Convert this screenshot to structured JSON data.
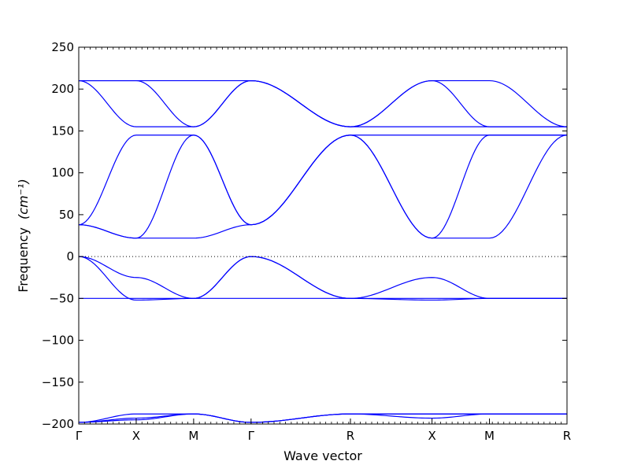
{
  "chart_data": {
    "type": "line",
    "title": "",
    "xlabel": "Wave vector",
    "ylabel": "Frequency",
    "ylabel_unit": "(cm⁻¹)",
    "ylim": [
      -200,
      250
    ],
    "yticks": [
      -200,
      -150,
      -100,
      -50,
      0,
      50,
      100,
      150,
      200,
      250
    ],
    "x": [
      0,
      1,
      2,
      3,
      4.73,
      6.15,
      7.15,
      8.5
    ],
    "xlim": [
      0,
      8.5
    ],
    "xtick_labels": [
      "Γ",
      "X",
      "M",
      "Γ",
      "R",
      "X",
      "M",
      "R"
    ],
    "zero_line": true,
    "grid": false,
    "color": "#0000ff",
    "series": [
      {
        "points": [
          [
            0,
            210
          ],
          [
            1,
            210
          ],
          [
            2,
            210
          ],
          [
            3,
            210
          ],
          [
            4.73,
            155
          ],
          [
            6.15,
            210
          ],
          [
            7.15,
            210
          ],
          [
            8.5,
            155
          ]
        ]
      },
      {
        "points": [
          [
            0,
            210
          ],
          [
            1,
            155
          ],
          [
            2,
            155
          ],
          [
            3,
            210
          ],
          [
            4.73,
            155
          ],
          [
            6.15,
            155
          ],
          [
            7.15,
            155
          ],
          [
            8.5,
            155
          ]
        ]
      },
      {
        "points": [
          [
            0,
            210
          ],
          [
            1,
            210
          ],
          [
            2,
            155
          ],
          [
            3,
            210
          ],
          [
            4.73,
            155
          ],
          [
            6.15,
            210
          ],
          [
            7.15,
            155
          ],
          [
            8.5,
            155
          ]
        ]
      },
      {
        "points": [
          [
            0,
            38
          ],
          [
            1,
            145
          ],
          [
            2,
            145
          ],
          [
            3,
            38
          ],
          [
            4.73,
            145
          ],
          [
            6.15,
            145
          ],
          [
            7.15,
            145
          ],
          [
            8.5,
            145
          ]
        ]
      },
      {
        "points": [
          [
            0,
            38
          ],
          [
            1,
            22
          ],
          [
            2,
            145
          ],
          [
            3,
            38
          ],
          [
            4.73,
            145
          ],
          [
            6.15,
            22
          ],
          [
            7.15,
            145
          ],
          [
            8.5,
            145
          ]
        ]
      },
      {
        "points": [
          [
            0,
            38
          ],
          [
            1,
            22
          ],
          [
            2,
            22
          ],
          [
            3,
            38
          ],
          [
            4.73,
            145
          ],
          [
            6.15,
            22
          ],
          [
            7.15,
            22
          ],
          [
            8.5,
            145
          ]
        ]
      },
      {
        "points": [
          [
            0,
            0
          ],
          [
            1,
            -25
          ],
          [
            2,
            -50
          ],
          [
            3,
            0
          ],
          [
            4.73,
            -50
          ],
          [
            6.15,
            -25
          ],
          [
            7.15,
            -50
          ],
          [
            8.5,
            -50
          ]
        ]
      },
      {
        "points": [
          [
            0,
            0
          ],
          [
            1,
            -52
          ],
          [
            2,
            -50
          ],
          [
            3,
            0
          ],
          [
            4.73,
            -50
          ],
          [
            6.15,
            -52
          ],
          [
            7.15,
            -50
          ],
          [
            8.5,
            -50
          ]
        ]
      },
      {
        "points": [
          [
            0,
            -50
          ],
          [
            1,
            -50
          ],
          [
            2,
            -50
          ],
          [
            3,
            -50
          ],
          [
            4.73,
            -50
          ],
          [
            6.15,
            -50
          ],
          [
            7.15,
            -50
          ],
          [
            8.5,
            -50
          ]
        ]
      },
      {
        "points": [
          [
            0,
            -198
          ],
          [
            1,
            -188
          ],
          [
            2,
            -188
          ],
          [
            3,
            -198
          ],
          [
            4.73,
            -188
          ],
          [
            6.15,
            -188
          ],
          [
            7.15,
            -188
          ],
          [
            8.5,
            -188
          ]
        ]
      },
      {
        "points": [
          [
            0,
            -198
          ],
          [
            1,
            -193
          ],
          [
            2,
            -188
          ],
          [
            3,
            -198
          ],
          [
            4.73,
            -188
          ],
          [
            6.15,
            -193
          ],
          [
            7.15,
            -188
          ],
          [
            8.5,
            -188
          ]
        ]
      },
      {
        "points": [
          [
            0,
            -198
          ],
          [
            1,
            -195
          ],
          [
            2,
            -188
          ],
          [
            3,
            -198
          ],
          [
            4.73,
            -188
          ],
          [
            6.15,
            -188
          ],
          [
            7.15,
            -188
          ],
          [
            8.5,
            -188
          ]
        ]
      }
    ]
  }
}
